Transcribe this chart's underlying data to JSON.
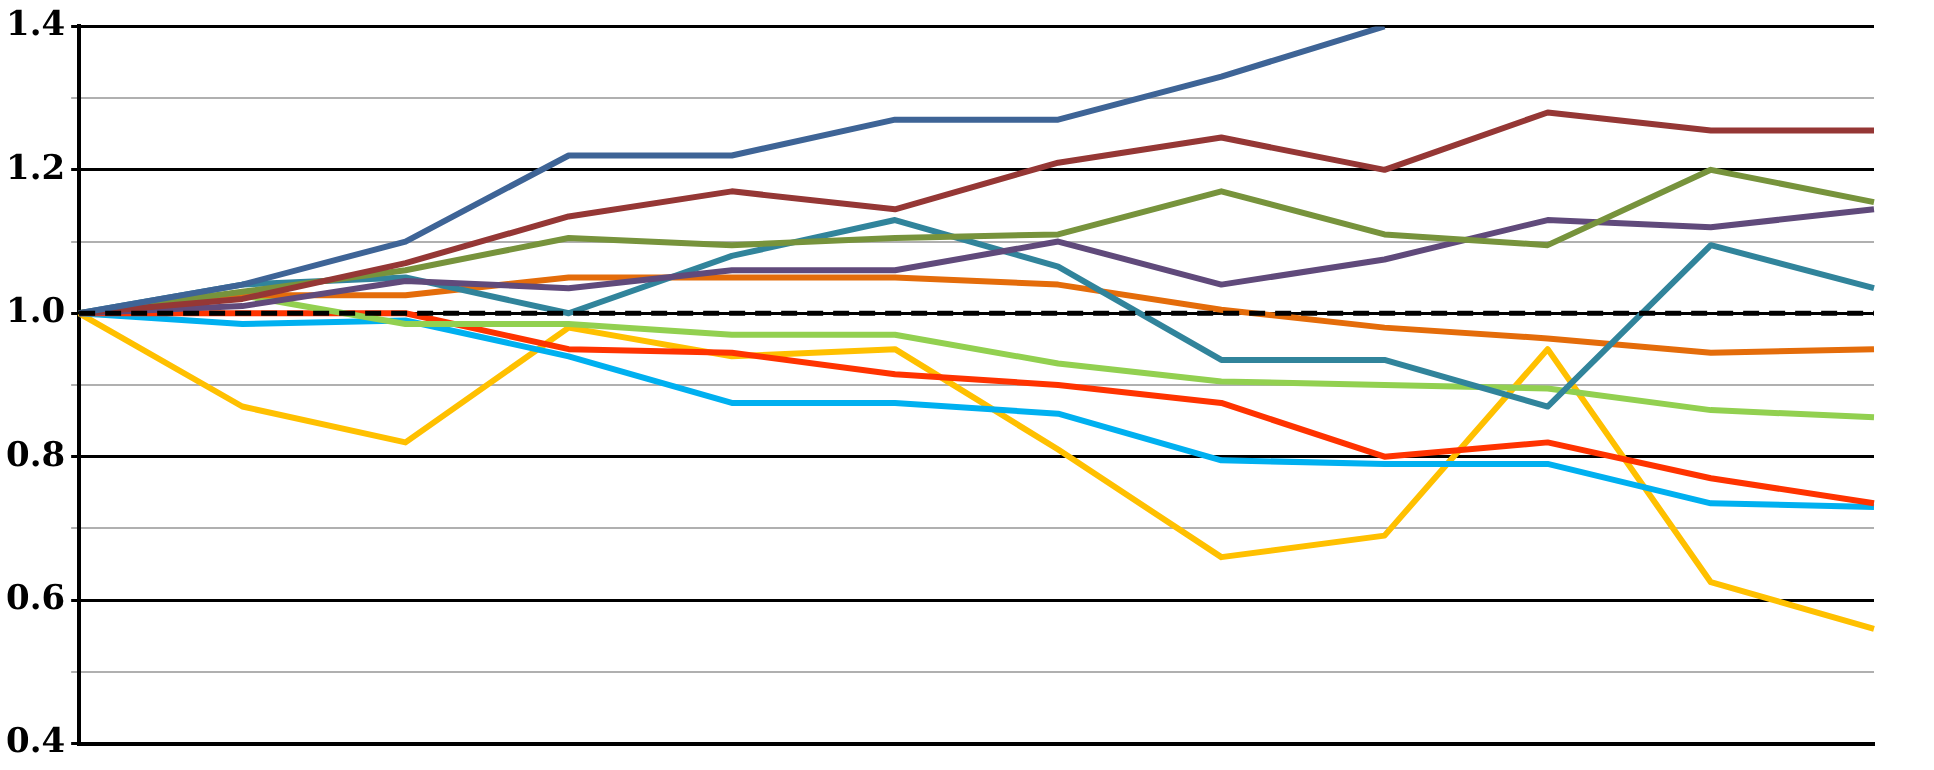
{
  "chart_data": {
    "type": "line",
    "categories": [
      null,
      null,
      null,
      null,
      null,
      null,
      null,
      null,
      null,
      null,
      null,
      null
    ],
    "ylim": [
      0.4,
      1.4
    ],
    "yticks": [
      0.4,
      {
        "value": 0.5,
        "label": null
      },
      0.6,
      {
        "value": 0.7,
        "label": null
      },
      0.8,
      {
        "value": 0.9,
        "label": null
      },
      {
        "value": 1.0,
        "label": "1.0"
      },
      {
        "value": 1.1,
        "label": null
      },
      1.2,
      {
        "value": 1.3,
        "label": null
      },
      1.4
    ],
    "grid": "y",
    "legend": false,
    "marker": "none",
    "line_style": "solid",
    "ref_lines": [
      {
        "axis": "y",
        "value": 1.0,
        "color": "#000000",
        "line_style": "dashed"
      }
    ],
    "series": [
      {
        "color": "#3e6496",
        "values": [
          1.0,
          1.04,
          1.1,
          1.22,
          1.22,
          1.27,
          1.27,
          1.33,
          1.4,
          null,
          null,
          null
        ]
      },
      {
        "color": "#953735",
        "values": [
          1.0,
          1.02,
          1.07,
          1.135,
          1.17,
          1.145,
          1.21,
          1.245,
          1.2,
          1.28,
          1.255,
          1.255
        ]
      },
      {
        "color": "#77933c",
        "values": [
          1.0,
          1.03,
          1.06,
          1.105,
          1.095,
          1.105,
          1.11,
          1.17,
          1.11,
          1.095,
          1.2,
          1.155
        ]
      },
      {
        "color": "#604a7b",
        "values": [
          1.0,
          1.01,
          1.045,
          1.035,
          1.06,
          1.06,
          1.1,
          1.04,
          1.075,
          1.13,
          1.12,
          1.145
        ]
      },
      {
        "color": "#31849b",
        "values": [
          1.0,
          1.04,
          1.05,
          1.0,
          1.08,
          1.13,
          1.065,
          0.935,
          0.935,
          0.87,
          1.095,
          1.035
        ]
      },
      {
        "color": "#e46c0a",
        "values": [
          1.0,
          1.025,
          1.025,
          1.05,
          1.05,
          1.05,
          1.04,
          1.005,
          0.98,
          0.965,
          0.945,
          0.95
        ]
      },
      {
        "color": "#92d050",
        "values": [
          1.0,
          1.025,
          0.985,
          0.985,
          0.97,
          0.97,
          0.93,
          0.905,
          0.9,
          0.895,
          0.865,
          0.855
        ]
      },
      {
        "color": "#ff3300",
        "values": [
          1.0,
          1.0,
          1.0,
          0.95,
          0.945,
          0.915,
          0.9,
          0.875,
          0.8,
          0.82,
          0.77,
          0.735
        ]
      },
      {
        "color": "#00b0f0",
        "values": [
          1.0,
          0.985,
          0.99,
          0.94,
          0.875,
          0.875,
          0.86,
          0.795,
          0.79,
          0.79,
          0.735,
          0.73
        ]
      },
      {
        "color": "#ffc000",
        "values": [
          1.0,
          0.87,
          0.82,
          0.98,
          0.94,
          0.95,
          0.81,
          0.66,
          0.69,
          0.95,
          0.625,
          0.56
        ]
      }
    ]
  }
}
